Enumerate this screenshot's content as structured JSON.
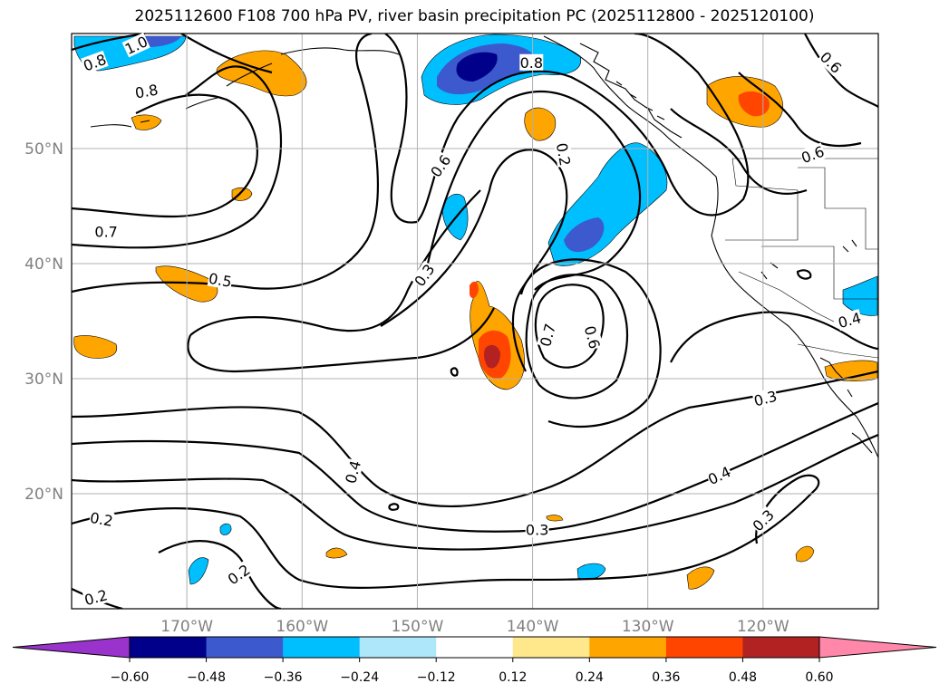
{
  "title": "2025112600 F108 700 hPa PV, river basin precipitation PC (2025112800 - 2025120100)",
  "map": {
    "lon_range": [
      -180,
      -110
    ],
    "lat_range": [
      10,
      60
    ],
    "lon_ticks": [
      {
        "value": -170,
        "label": "170°W"
      },
      {
        "value": -160,
        "label": "160°W"
      },
      {
        "value": -150,
        "label": "150°W"
      },
      {
        "value": -140,
        "label": "140°W"
      },
      {
        "value": -130,
        "label": "130°W"
      },
      {
        "value": -120,
        "label": "120°W"
      }
    ],
    "lat_ticks": [
      {
        "value": 20,
        "label": "20°N"
      },
      {
        "value": 30,
        "label": "30°N"
      },
      {
        "value": 40,
        "label": "40°N"
      },
      {
        "value": 50,
        "label": "50°N"
      }
    ],
    "gridlines": true,
    "contour_labels": [
      {
        "text": "1.0",
        "lon": -174.4,
        "lat": 59.0,
        "rot": -25
      },
      {
        "text": "0.8",
        "lon": -178.0,
        "lat": 57.5,
        "rot": -20
      },
      {
        "text": "0.8",
        "lon": -173.5,
        "lat": 55.0,
        "rot": -10
      },
      {
        "text": "0.8",
        "lon": -140.1,
        "lat": 57.5,
        "rot": 0
      },
      {
        "text": "0.6",
        "lon": -114.1,
        "lat": 57.5,
        "rot": 45
      },
      {
        "text": "0.6",
        "lon": -115.7,
        "lat": 49.5,
        "rot": -20
      },
      {
        "text": "0.6",
        "lon": -148.0,
        "lat": 48.5,
        "rot": -55
      },
      {
        "text": "0.2",
        "lon": -137.3,
        "lat": 49.5,
        "rot": 80
      },
      {
        "text": "0.7",
        "lon": -177.0,
        "lat": 42.8,
        "rot": 0
      },
      {
        "text": "0.5",
        "lon": -167.1,
        "lat": 38.6,
        "rot": 10
      },
      {
        "text": "0.3",
        "lon": -149.4,
        "lat": 39.0,
        "rot": -55
      },
      {
        "text": "0.7",
        "lon": -138.7,
        "lat": 33.8,
        "rot": -75
      },
      {
        "text": "0.6",
        "lon": -134.8,
        "lat": 33.6,
        "rot": 75
      },
      {
        "text": "0.4",
        "lon": -112.5,
        "lat": 35.1,
        "rot": -15
      },
      {
        "text": "0.3",
        "lon": -119.8,
        "lat": 28.3,
        "rot": -15
      },
      {
        "text": "0.4",
        "lon": -155.6,
        "lat": 21.9,
        "rot": -75
      },
      {
        "text": "0.4",
        "lon": -123.8,
        "lat": 21.6,
        "rot": -25
      },
      {
        "text": "0.3",
        "lon": -120.0,
        "lat": 17.7,
        "rot": -45
      },
      {
        "text": "0.2",
        "lon": -177.4,
        "lat": 17.8,
        "rot": 10
      },
      {
        "text": "0.3",
        "lon": -139.6,
        "lat": 16.9,
        "rot": 0
      },
      {
        "text": "0.2",
        "lon": -165.5,
        "lat": 13.0,
        "rot": -35
      },
      {
        "text": "0.2",
        "lon": -177.9,
        "lat": 11.0,
        "rot": -15
      }
    ]
  },
  "colorbar": {
    "ticks": [
      "−0.60",
      "−0.48",
      "−0.36",
      "−0.24",
      "−0.12",
      "0.12",
      "0.24",
      "0.36",
      "0.48",
      "0.60"
    ],
    "under_color": "#9933cc",
    "over_color": "#ff88aa",
    "colors": [
      "#00008b",
      "#3c5acd",
      "#00bfff",
      "#aee6fa",
      "#ffffff",
      "#ffe88c",
      "#ffa500",
      "#ff4500",
      "#b22222"
    ]
  },
  "shading_colors": {
    "orange": "#ffa500",
    "red": "#ff4500",
    "darkred": "#b22222",
    "blue": "#3c5acd",
    "cyan": "#00bfff",
    "navy": "#00008b"
  }
}
